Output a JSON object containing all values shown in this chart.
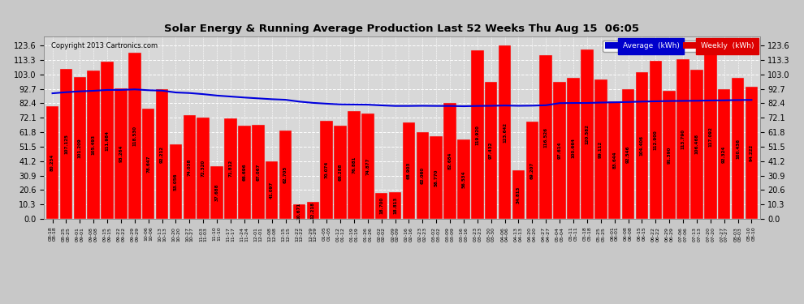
{
  "title": "Solar Energy & Running Average Production Last 52 Weeks Thu Aug 15  06:05",
  "copyright": "Copyright 2013 Cartronics.com",
  "background_color": "#c8c8c8",
  "plot_bg_color": "#d8d8d8",
  "bar_color": "#ff0000",
  "avg_line_color": "#0000dd",
  "yticks": [
    0.0,
    10.3,
    20.6,
    30.9,
    41.2,
    51.5,
    61.8,
    72.1,
    82.4,
    92.7,
    103.0,
    113.3,
    123.6
  ],
  "legend_avg_color": "#0000cc",
  "legend_weekly_color": "#dd0000",
  "x_tick_labels": [
    "08-18\n08-18",
    "08-25\n08-25",
    "09-01\n09-01",
    "09-08\n09-08",
    "09-15\n09-15",
    "09-22\n09-22",
    "09-29\n09-29",
    "10-06\n10-06",
    "10-13\n10-13",
    "10-20\n10-20",
    "10-27\n10-27",
    "11-03\n11-03",
    "11-10\n11-10",
    "11-17\n11-17",
    "11-24\n11-24",
    "12-01\n12-01",
    "12-08\n12-08",
    "12-15\n12-15",
    "12-22\n12-22",
    "12-29\n12-29",
    "01-05\n01-05",
    "01-12\n01-12",
    "01-19\n01-19",
    "01-26\n01-26",
    "02-02\n02-02",
    "02-09\n02-09",
    "02-16\n02-16",
    "02-23\n02-23",
    "03-02\n03-02",
    "03-09\n03-09",
    "03-16\n03-16",
    "03-23\n03-23",
    "03-30\n03-30",
    "04-06\n04-06",
    "04-13\n04-13",
    "04-20\n04-20",
    "04-27\n04-27",
    "05-04\n05-04",
    "05-11\n05-11",
    "05-18\n05-18",
    "05-25\n05-25",
    "06-01\n06-01",
    "06-08\n06-08",
    "06-15\n06-15",
    "06-22\n06-22",
    "06-29\n06-29",
    "07-06\n07-06",
    "07-13\n07-13",
    "07-20\n07-20",
    "07-27\n07-27",
    "08-03\n08-03",
    "08-10\n08-10"
  ],
  "weekly_values": [
    80.234,
    107.125,
    101.209,
    105.493,
    111.984,
    93.264,
    118.53,
    78.647,
    92.212,
    53.056,
    74.038,
    72.32,
    37.688,
    71.812,
    66.696,
    67.067,
    41.097,
    62.705,
    10.671,
    12.218,
    70.074,
    66.288,
    76.881,
    74.877,
    18.7,
    18.813,
    68.903,
    62.06,
    58.77,
    82.684,
    56.534,
    119.92,
    97.432,
    123.642,
    34.813,
    69.207,
    116.526,
    97.614,
    100.664,
    120.582,
    99.112,
    83.644,
    92.546,
    104.406,
    112.9,
    91.39,
    113.79,
    106.468,
    117.092,
    92.324,
    100.436,
    94.222
  ],
  "avg_values": [
    89.5,
    90.3,
    90.9,
    91.3,
    91.9,
    91.9,
    92.3,
    91.7,
    91.4,
    90.1,
    89.7,
    88.9,
    87.9,
    87.2,
    86.5,
    85.9,
    85.3,
    84.9,
    83.6,
    82.7,
    82.1,
    81.6,
    81.5,
    81.4,
    80.9,
    80.5,
    80.5,
    80.6,
    80.5,
    80.5,
    80.3,
    80.5,
    80.6,
    80.8,
    80.6,
    80.7,
    81.0,
    82.5,
    82.6,
    82.6,
    82.9,
    83.1,
    83.3,
    83.6,
    83.8,
    84.0,
    84.1,
    84.2,
    84.4,
    84.5,
    84.7,
    84.8
  ]
}
